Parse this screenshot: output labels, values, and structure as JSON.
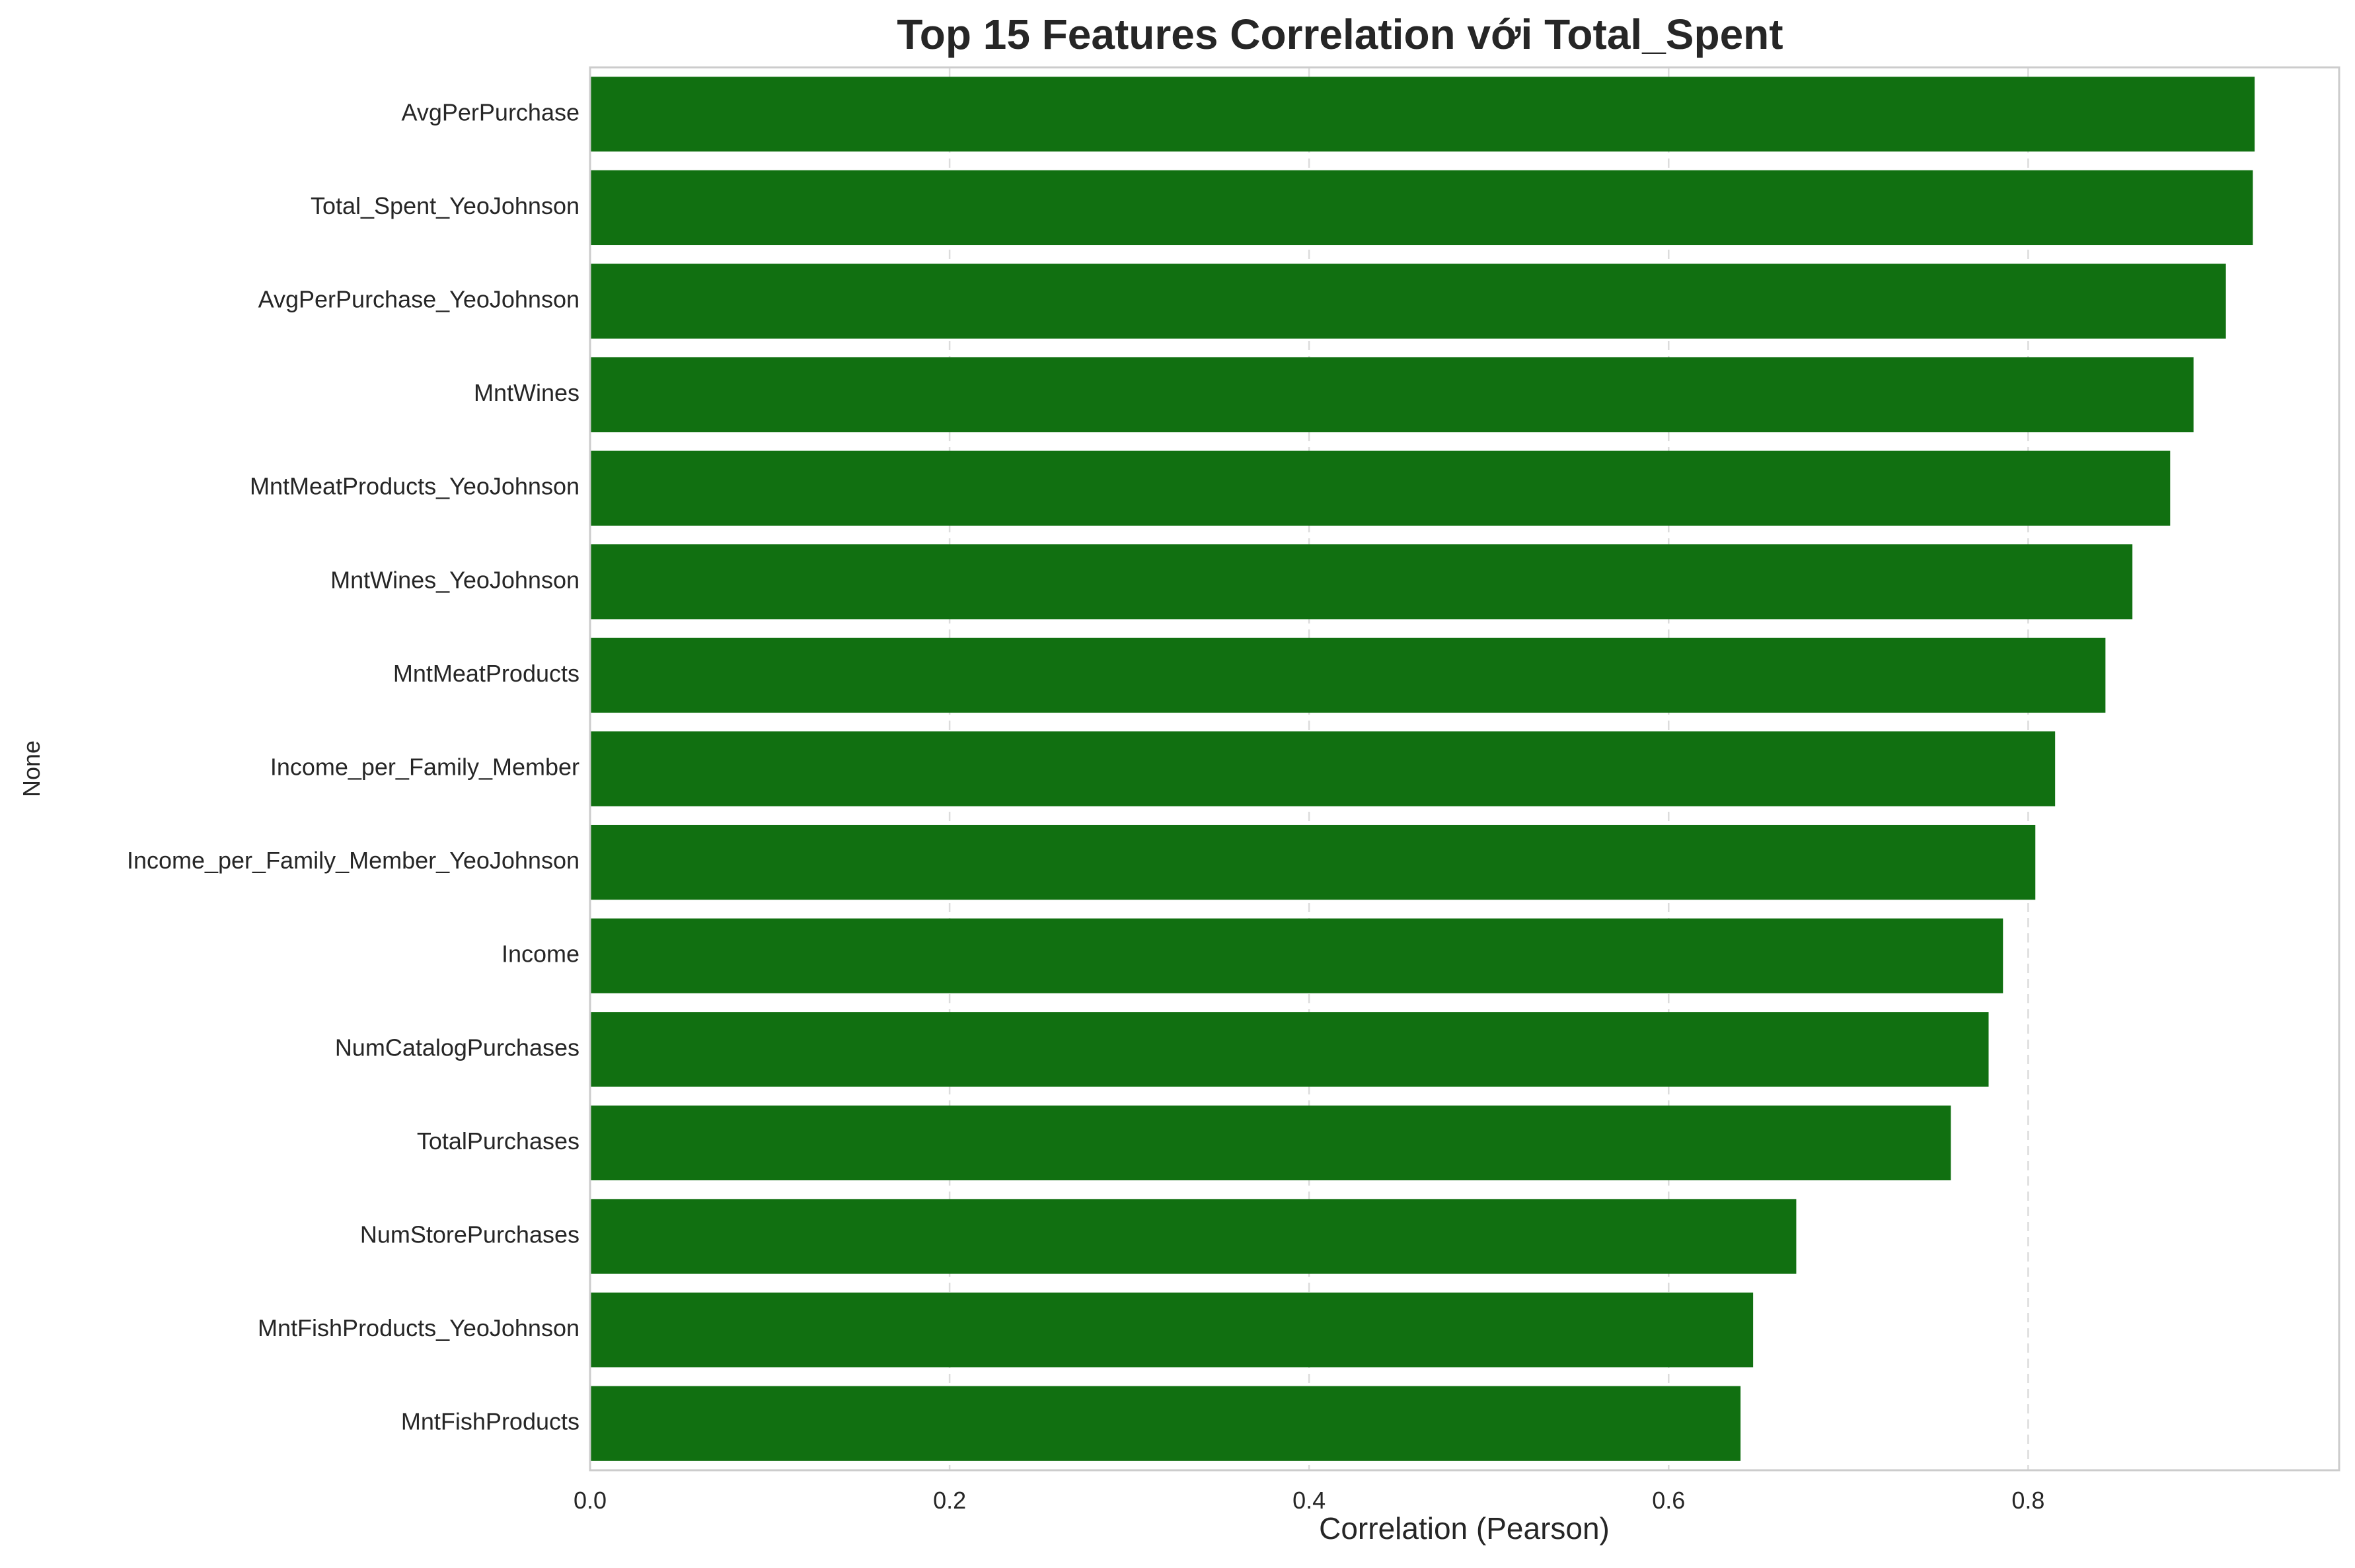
{
  "chart_data": {
    "type": "bar",
    "orientation": "horizontal",
    "title": "Top 15 Features Correlation với Total_Spent",
    "xlabel": "Correlation (Pearson)",
    "ylabel": "None",
    "categories": [
      "AvgPerPurchase",
      "Total_Spent_YeoJohnson",
      "AvgPerPurchase_YeoJohnson",
      "MntWines",
      "MntMeatProducts_YeoJohnson",
      "MntWines_YeoJohnson",
      "MntMeatProducts",
      "Income_per_Family_Member",
      "Income_per_Family_Member_YeoJohnson",
      "Income",
      "NumCatalogPurchases",
      "TotalPurchases",
      "NumStorePurchases",
      "MntFishProducts_YeoJohnson",
      "MntFishProducts"
    ],
    "values": [
      0.926,
      0.925,
      0.91,
      0.892,
      0.879,
      0.858,
      0.843,
      0.815,
      0.804,
      0.786,
      0.778,
      0.757,
      0.671,
      0.647,
      0.64
    ],
    "xlim": [
      0.0,
      0.973
    ],
    "xticks": [
      "0.0",
      "0.2",
      "0.4",
      "0.6",
      "0.8"
    ],
    "xtick_values": [
      0.0,
      0.2,
      0.4,
      0.6,
      0.8
    ],
    "grid": true,
    "legend": "none",
    "bar_color": "#117011",
    "grid_color": "#dcdcdc",
    "axis_color": "#cccccc"
  }
}
